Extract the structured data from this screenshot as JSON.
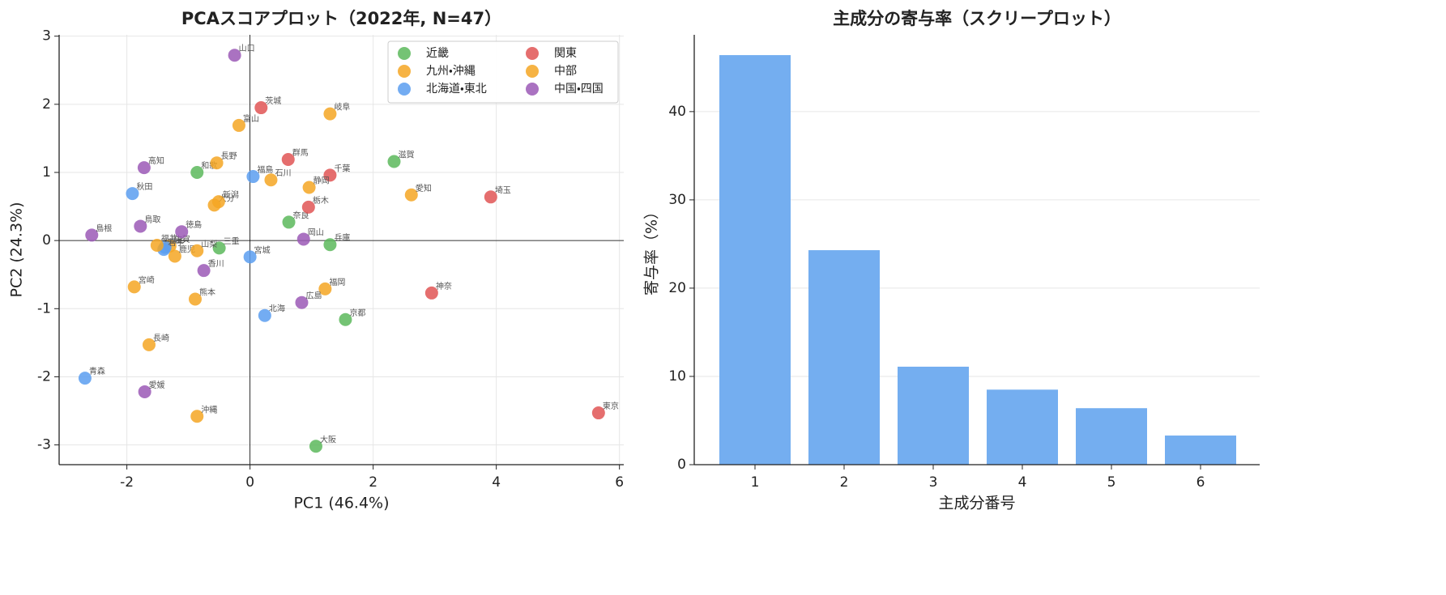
{
  "chart_data": [
    {
      "type": "scatter",
      "title": "PCAスコアプロット（2022年, N=47）",
      "xlabel": "PC1 (46.4%)",
      "ylabel": "PC2 (24.3%)",
      "xlim": [
        -3.1,
        6.07
      ],
      "ylim": [
        -3.29,
        3.02
      ],
      "xticks": [
        -2,
        0,
        2,
        4,
        6
      ],
      "yticks": [
        -3,
        -2,
        -1,
        0,
        1,
        2,
        3
      ],
      "grid": true,
      "zero_lines": true,
      "legend": "upper right",
      "series": [
        {
          "name": "近畿",
          "color": "#5cb85c",
          "labels": [
            "滋賀",
            "和歌",
            "奈良",
            "兵庫",
            "三重",
            "京都",
            "大阪"
          ],
          "x": [
            2.34,
            -0.86,
            0.63,
            1.3,
            -0.5,
            1.55,
            1.07
          ],
          "values": [
            1.16,
            1.0,
            0.27,
            -0.06,
            -0.11,
            -1.16,
            -3.02
          ]
        },
        {
          "name": "九州・沖縄",
          "color": "#f5a623",
          "labels": [
            "大分",
            "佐賀",
            "鹿児",
            "宮崎",
            "熊本",
            "福岡",
            "長崎",
            "沖縄"
          ],
          "x": [
            -0.58,
            -1.3,
            -1.22,
            -1.88,
            -0.89,
            1.22,
            -1.64,
            -0.86
          ],
          "values": [
            0.52,
            -0.08,
            -0.23,
            -0.68,
            -0.86,
            -0.71,
            -1.53,
            -2.58
          ]
        },
        {
          "name": "北海道・東北",
          "color": "#5b9ef0",
          "labels": [
            "福島",
            "秋田",
            "山形",
            "岩手",
            "宮城",
            "北海",
            "青森"
          ],
          "x": [
            0.05,
            -1.91,
            -1.38,
            -1.4,
            0,
            0.24,
            -2.68
          ],
          "values": [
            0.94,
            0.69,
            -0.1,
            -0.13,
            -0.24,
            -1.1,
            -2.02
          ]
        },
        {
          "name": "関東",
          "color": "#e05555",
          "labels": [
            "茨城",
            "群馬",
            "千葉",
            "埼玉",
            "栃木",
            "神奈",
            "東京"
          ],
          "x": [
            0.18,
            0.62,
            1.3,
            3.91,
            0.95,
            2.95,
            5.66
          ],
          "values": [
            1.95,
            1.19,
            0.96,
            0.64,
            0.49,
            -0.77,
            -2.53
          ]
        },
        {
          "name": "中部",
          "color": "#f5a623",
          "labels": [
            "岐阜",
            "富山",
            "長野",
            "石川",
            "静岡",
            "愛知",
            "新潟",
            "福井",
            "山梨"
          ],
          "x": [
            1.3,
            -0.18,
            -0.54,
            0.34,
            0.96,
            2.62,
            -0.51,
            -1.51,
            -0.86
          ],
          "values": [
            1.86,
            1.69,
            1.14,
            0.89,
            0.78,
            0.67,
            0.57,
            -0.07,
            -0.15
          ]
        },
        {
          "name": "中国・四国",
          "color": "#9b59b6",
          "labels": [
            "山口",
            "高知",
            "鳥取",
            "徳島",
            "島根",
            "岡山",
            "香川",
            "広島",
            "愛媛"
          ],
          "x": [
            -0.25,
            -1.72,
            -1.78,
            -1.11,
            -2.57,
            0.87,
            -0.75,
            0.84,
            -1.71
          ],
          "values": [
            2.72,
            1.07,
            0.21,
            0.13,
            0.08,
            0.02,
            -0.44,
            -0.91,
            -2.22
          ]
        }
      ]
    },
    {
      "type": "bar",
      "title": "主成分の寄与率（スクリープロット）",
      "xlabel": "主成分番号",
      "ylabel": "寄与率（%）",
      "categories": [
        "1",
        "2",
        "3",
        "4",
        "5",
        "6"
      ],
      "values": [
        46.4,
        24.3,
        11.1,
        8.5,
        6.4,
        3.3
      ],
      "color": "#74aef0",
      "ylim": [
        0,
        48.7
      ],
      "yticks": [
        0,
        10,
        20,
        30,
        40
      ],
      "grid": true
    }
  ]
}
